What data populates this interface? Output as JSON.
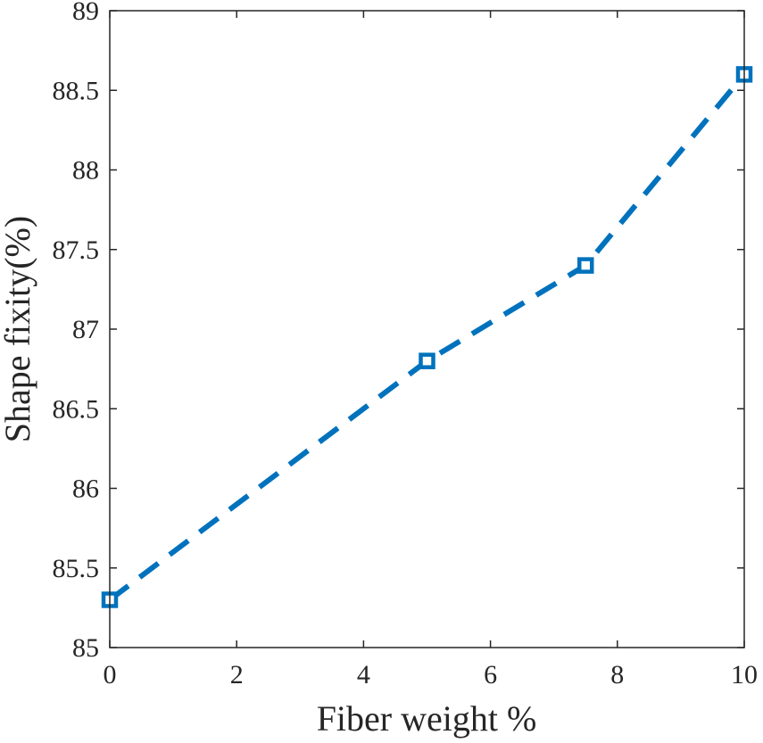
{
  "chart_data": {
    "type": "line",
    "title": "",
    "xlabel": "Fiber weight %",
    "ylabel": "Shape fixity(%)",
    "xlim": [
      0,
      10
    ],
    "ylim": [
      85,
      89
    ],
    "x_ticks": [
      0,
      2,
      4,
      6,
      8,
      10
    ],
    "x_tick_labels": [
      "0",
      "2",
      "4",
      "6",
      "8",
      "10"
    ],
    "y_ticks": [
      85,
      85.5,
      86,
      86.5,
      87,
      87.5,
      88,
      88.5,
      89
    ],
    "y_tick_labels": [
      "85",
      "85.5",
      "86",
      "86.5",
      "87",
      "87.5",
      "88",
      "88.5",
      "89"
    ],
    "grid": false,
    "series": [
      {
        "name": "Shape fixity",
        "x": [
          0,
          5,
          7.5,
          10
        ],
        "y": [
          85.3,
          86.8,
          87.4,
          88.6
        ],
        "color": "#0072BD",
        "line_style": "dashed",
        "marker": "square"
      }
    ]
  }
}
